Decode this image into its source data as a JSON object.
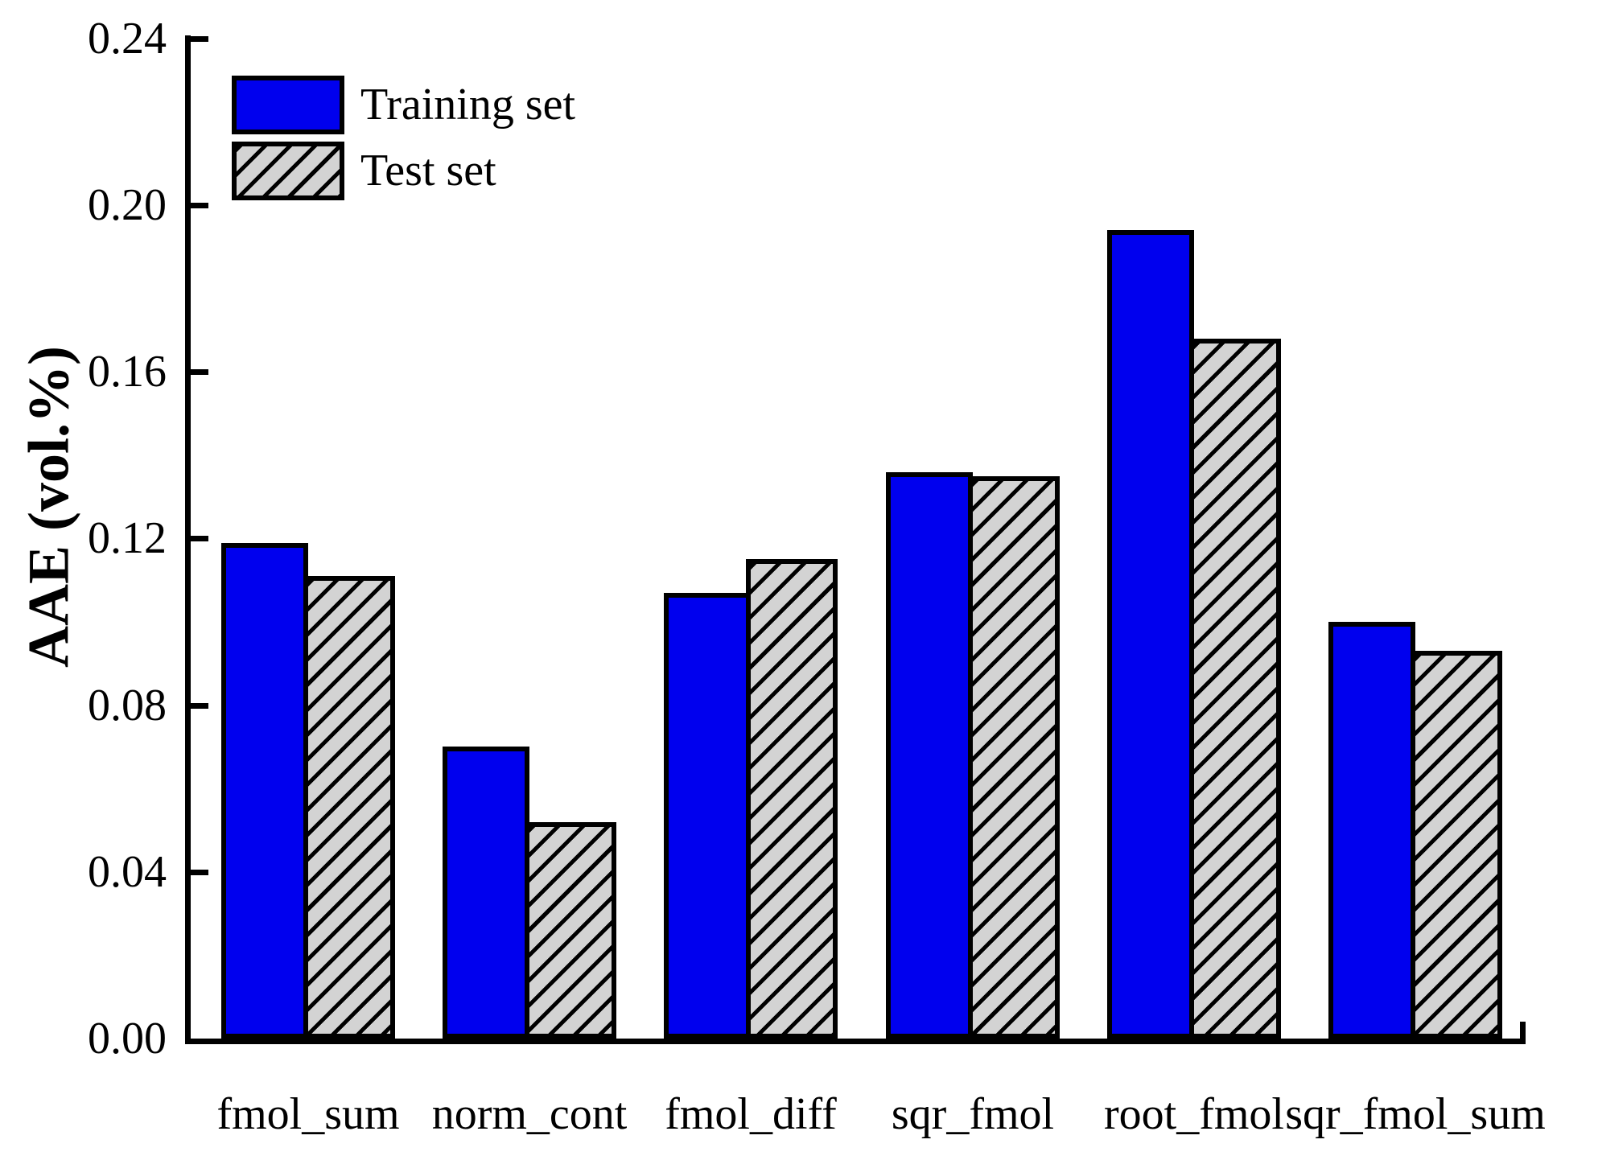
{
  "chart_data": {
    "type": "bar",
    "title": "",
    "xlabel": "",
    "ylabel": "AAE (vol.%)",
    "categories": [
      "fmol_sum",
      "norm_cont",
      "fmol_diff",
      "sqr_fmol",
      "root_fmol",
      "sqr_fmol_sum"
    ],
    "series": [
      {
        "name": "Training set",
        "fill": "solid",
        "color": "#0000EE",
        "values": [
          0.119,
          0.07,
          0.107,
          0.136,
          0.194,
          0.1
        ]
      },
      {
        "name": "Test set",
        "fill": "hatched",
        "color": "#D3D3D3",
        "hatch_color": "#000000",
        "values": [
          0.111,
          0.052,
          0.115,
          0.135,
          0.168,
          0.093
        ]
      }
    ],
    "ylim": [
      0,
      0.24
    ],
    "ytick_values": [
      0,
      0.04,
      0.08,
      0.12,
      0.16,
      0.2,
      0.24
    ],
    "ytick_labels": [
      "0.00",
      "0.04",
      "0.08",
      "0.12",
      "0.16",
      "0.20",
      "0.24"
    ],
    "grid": false,
    "legend_position": "top-left",
    "axis_color": "#000000",
    "background_color": "#FFFFFF"
  }
}
